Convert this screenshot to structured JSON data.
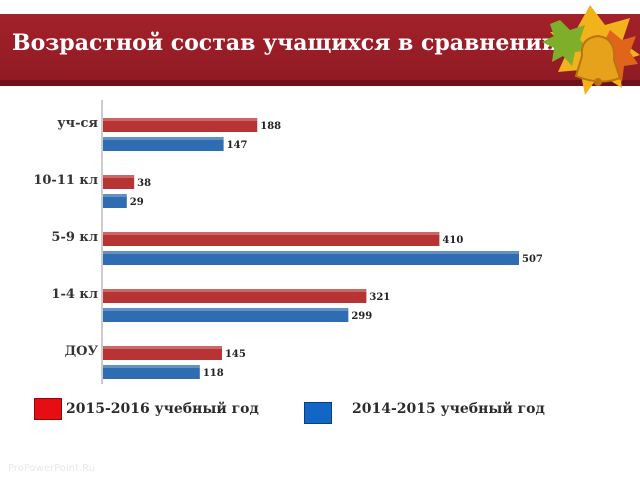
{
  "slide": {
    "title": "Возрастной состав учащихся в сравнении",
    "footer": "ProPowerPoint.Ru"
  },
  "colors": {
    "banner": "#9b1f28",
    "series_2015": "#b83434",
    "series_2014": "#2f6db3"
  },
  "decor": {
    "icon": "autumn-leaves-bell-icon"
  },
  "chart_data": {
    "type": "bar",
    "orientation": "horizontal",
    "categories": [
      "уч-ся",
      "10-11 кл",
      "5-9 кл",
      "1-4 кл",
      "ДОУ"
    ],
    "series": [
      {
        "name": "2015-2016 учебный год",
        "values": [
          188,
          38,
          410,
          321,
          145
        ]
      },
      {
        "name": "2014-2015 учебный год",
        "values": [
          147,
          29,
          507,
          299,
          118
        ]
      }
    ],
    "title": "",
    "xlabel": "",
    "ylabel": "",
    "xlim": [
      0,
      507
    ],
    "grid": false,
    "legend": "bottom",
    "data_labels": true
  }
}
